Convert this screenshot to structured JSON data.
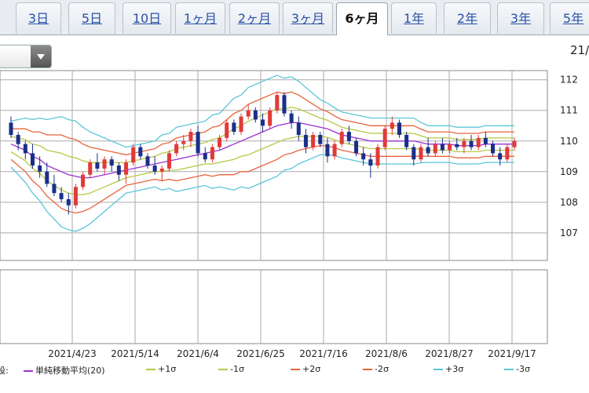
{
  "tabs": [
    {
      "label": "3日",
      "active": false
    },
    {
      "label": "5日",
      "active": false
    },
    {
      "label": "10日",
      "active": false
    },
    {
      "label": "1ヶ月",
      "active": false
    },
    {
      "label": "2ヶ月",
      "active": false
    },
    {
      "label": "3ヶ月",
      "active": false
    },
    {
      "label": "6ヶ月",
      "active": true
    },
    {
      "label": "1年",
      "active": false
    },
    {
      "label": "2年",
      "active": false
    },
    {
      "label": "3年",
      "active": false
    },
    {
      "label": "5年",
      "active": false
    }
  ],
  "date_corner": "21/",
  "legend": {
    "prefix": "設:",
    "items": [
      {
        "label": "単純移動平均(20)",
        "color": "#9b30d0"
      },
      {
        "label": "+1σ",
        "color": "#b7c842"
      },
      {
        "label": "-1σ",
        "color": "#b7c842"
      },
      {
        "label": "+2σ",
        "color": "#e8643c"
      },
      {
        "label": "-2σ",
        "color": "#e8643c"
      },
      {
        "label": "+3σ",
        "color": "#5bc6d8"
      },
      {
        "label": "-3σ",
        "color": "#5bc6d8"
      }
    ]
  },
  "chart_data": {
    "type": "candlestick",
    "x_tick_labels": [
      "2021/4/23",
      "2021/5/14",
      "2021/6/4",
      "2021/6/25",
      "2021/7/16",
      "2021/8/6",
      "2021/8/27",
      "2021/9/17"
    ],
    "y_ticks": [
      107,
      108,
      109,
      110,
      111,
      112
    ],
    "ylim": [
      106.1,
      112.3
    ],
    "up_color": "#e03a3a",
    "down_color": "#1a2f8a",
    "grid": true,
    "candles": [
      {
        "o": 110.6,
        "h": 110.8,
        "l": 110.1,
        "c": 110.2
      },
      {
        "o": 110.2,
        "h": 110.3,
        "l": 109.7,
        "c": 109.9
      },
      {
        "o": 109.9,
        "h": 110.0,
        "l": 109.4,
        "c": 109.6
      },
      {
        "o": 109.6,
        "h": 109.9,
        "l": 109.1,
        "c": 109.2
      },
      {
        "o": 109.2,
        "h": 109.5,
        "l": 108.8,
        "c": 109.0
      },
      {
        "o": 109.0,
        "h": 109.3,
        "l": 108.5,
        "c": 108.6
      },
      {
        "o": 108.6,
        "h": 108.9,
        "l": 108.2,
        "c": 108.3
      },
      {
        "o": 108.3,
        "h": 108.5,
        "l": 108.0,
        "c": 108.1
      },
      {
        "o": 108.1,
        "h": 108.3,
        "l": 107.6,
        "c": 107.9
      },
      {
        "o": 107.9,
        "h": 108.6,
        "l": 107.8,
        "c": 108.5
      },
      {
        "o": 108.5,
        "h": 109.0,
        "l": 108.4,
        "c": 108.9
      },
      {
        "o": 108.9,
        "h": 109.4,
        "l": 108.8,
        "c": 109.3
      },
      {
        "o": 109.3,
        "h": 109.6,
        "l": 109.0,
        "c": 109.1
      },
      {
        "o": 109.1,
        "h": 109.5,
        "l": 108.9,
        "c": 109.4
      },
      {
        "o": 109.4,
        "h": 109.5,
        "l": 109.0,
        "c": 109.2
      },
      {
        "o": 109.2,
        "h": 109.3,
        "l": 108.7,
        "c": 108.9
      },
      {
        "o": 108.9,
        "h": 109.4,
        "l": 108.6,
        "c": 109.3
      },
      {
        "o": 109.3,
        "h": 109.9,
        "l": 109.2,
        "c": 109.8
      },
      {
        "o": 109.8,
        "h": 109.9,
        "l": 109.4,
        "c": 109.5
      },
      {
        "o": 109.5,
        "h": 109.6,
        "l": 109.1,
        "c": 109.2
      },
      {
        "o": 109.2,
        "h": 109.5,
        "l": 108.9,
        "c": 109.0
      },
      {
        "o": 109.0,
        "h": 109.2,
        "l": 108.7,
        "c": 109.1
      },
      {
        "o": 109.1,
        "h": 109.7,
        "l": 109.0,
        "c": 109.6
      },
      {
        "o": 109.6,
        "h": 110.0,
        "l": 109.5,
        "c": 109.9
      },
      {
        "o": 109.9,
        "h": 110.2,
        "l": 109.7,
        "c": 110.0
      },
      {
        "o": 110.0,
        "h": 110.4,
        "l": 109.8,
        "c": 110.3
      },
      {
        "o": 110.3,
        "h": 110.5,
        "l": 109.5,
        "c": 109.6
      },
      {
        "o": 109.6,
        "h": 109.8,
        "l": 109.3,
        "c": 109.4
      },
      {
        "o": 109.4,
        "h": 109.9,
        "l": 109.3,
        "c": 109.8
      },
      {
        "o": 109.8,
        "h": 110.2,
        "l": 109.7,
        "c": 110.1
      },
      {
        "o": 110.1,
        "h": 110.7,
        "l": 110.0,
        "c": 110.6
      },
      {
        "o": 110.6,
        "h": 110.7,
        "l": 110.2,
        "c": 110.3
      },
      {
        "o": 110.3,
        "h": 110.9,
        "l": 110.2,
        "c": 110.8
      },
      {
        "o": 110.8,
        "h": 111.2,
        "l": 110.7,
        "c": 111.0
      },
      {
        "o": 111.0,
        "h": 111.1,
        "l": 110.6,
        "c": 110.7
      },
      {
        "o": 110.7,
        "h": 110.9,
        "l": 110.3,
        "c": 110.5
      },
      {
        "o": 110.5,
        "h": 111.1,
        "l": 110.4,
        "c": 111.0
      },
      {
        "o": 111.0,
        "h": 111.6,
        "l": 110.9,
        "c": 111.5
      },
      {
        "o": 111.5,
        "h": 111.6,
        "l": 110.8,
        "c": 110.9
      },
      {
        "o": 110.9,
        "h": 111.0,
        "l": 110.4,
        "c": 110.6
      },
      {
        "o": 110.6,
        "h": 110.8,
        "l": 110.0,
        "c": 110.2
      },
      {
        "o": 110.2,
        "h": 110.4,
        "l": 109.6,
        "c": 109.8
      },
      {
        "o": 109.8,
        "h": 110.3,
        "l": 109.7,
        "c": 110.2
      },
      {
        "o": 110.2,
        "h": 110.3,
        "l": 109.8,
        "c": 109.9
      },
      {
        "o": 109.9,
        "h": 110.1,
        "l": 109.3,
        "c": 109.5
      },
      {
        "o": 109.5,
        "h": 110.0,
        "l": 109.4,
        "c": 109.9
      },
      {
        "o": 109.9,
        "h": 110.4,
        "l": 109.8,
        "c": 110.3
      },
      {
        "o": 110.3,
        "h": 110.5,
        "l": 109.9,
        "c": 110.0
      },
      {
        "o": 110.0,
        "h": 110.1,
        "l": 109.5,
        "c": 109.6
      },
      {
        "o": 109.6,
        "h": 109.8,
        "l": 109.2,
        "c": 109.4
      },
      {
        "o": 109.4,
        "h": 109.6,
        "l": 108.8,
        "c": 109.2
      },
      {
        "o": 109.2,
        "h": 109.9,
        "l": 109.1,
        "c": 109.8
      },
      {
        "o": 109.8,
        "h": 110.5,
        "l": 109.7,
        "c": 110.4
      },
      {
        "o": 110.4,
        "h": 110.8,
        "l": 110.2,
        "c": 110.6
      },
      {
        "o": 110.6,
        "h": 110.7,
        "l": 110.1,
        "c": 110.2
      },
      {
        "o": 110.2,
        "h": 110.3,
        "l": 109.7,
        "c": 109.8
      },
      {
        "o": 109.8,
        "h": 109.9,
        "l": 109.2,
        "c": 109.4
      },
      {
        "o": 109.4,
        "h": 109.9,
        "l": 109.3,
        "c": 109.8
      },
      {
        "o": 109.8,
        "h": 110.1,
        "l": 109.5,
        "c": 109.6
      },
      {
        "o": 109.6,
        "h": 110.0,
        "l": 109.5,
        "c": 109.9
      },
      {
        "o": 109.9,
        "h": 110.1,
        "l": 109.6,
        "c": 109.7
      },
      {
        "o": 109.7,
        "h": 110.0,
        "l": 109.6,
        "c": 109.9
      },
      {
        "o": 109.9,
        "h": 110.1,
        "l": 109.7,
        "c": 109.8
      },
      {
        "o": 109.8,
        "h": 110.1,
        "l": 109.6,
        "c": 110.0
      },
      {
        "o": 110.0,
        "h": 110.2,
        "l": 109.7,
        "c": 109.8
      },
      {
        "o": 109.8,
        "h": 110.2,
        "l": 109.7,
        "c": 110.1
      },
      {
        "o": 110.1,
        "h": 110.3,
        "l": 109.8,
        "c": 109.9
      },
      {
        "o": 109.9,
        "h": 110.0,
        "l": 109.5,
        "c": 109.6
      },
      {
        "o": 109.6,
        "h": 109.8,
        "l": 109.2,
        "c": 109.4
      },
      {
        "o": 109.4,
        "h": 109.9,
        "l": 109.3,
        "c": 109.8
      },
      {
        "o": 109.8,
        "h": 110.1,
        "l": 109.7,
        "c": 110.0
      }
    ],
    "sma20": [
      109.9,
      109.8,
      109.7,
      109.5,
      109.4,
      109.2,
      109.1,
      109.0,
      108.9,
      108.85,
      108.8,
      108.8,
      108.85,
      108.9,
      108.95,
      109.0,
      109.05,
      109.1,
      109.15,
      109.2,
      109.25,
      109.3,
      109.35,
      109.4,
      109.45,
      109.5,
      109.55,
      109.6,
      109.65,
      109.7,
      109.8,
      109.9,
      110.0,
      110.1,
      110.2,
      110.3,
      110.4,
      110.5,
      110.55,
      110.6,
      110.6,
      110.55,
      110.5,
      110.45,
      110.4,
      110.3,
      110.2,
      110.15,
      110.1,
      110.05,
      110.0,
      110.0,
      110.0,
      110.0,
      110.0,
      110.0,
      110.0,
      109.95,
      109.9,
      109.9,
      109.9,
      109.9,
      109.85,
      109.85,
      109.85,
      109.85,
      109.9,
      109.9,
      109.9,
      109.9,
      109.9
    ],
    "sigma": [
      0.25,
      0.3,
      0.35,
      0.4,
      0.45,
      0.5,
      0.55,
      0.6,
      0.6,
      0.6,
      0.55,
      0.5,
      0.45,
      0.4,
      0.35,
      0.3,
      0.25,
      0.25,
      0.25,
      0.25,
      0.25,
      0.3,
      0.3,
      0.35,
      0.35,
      0.35,
      0.35,
      0.35,
      0.4,
      0.4,
      0.45,
      0.5,
      0.5,
      0.55,
      0.55,
      0.55,
      0.55,
      0.55,
      0.5,
      0.5,
      0.45,
      0.4,
      0.35,
      0.3,
      0.28,
      0.26,
      0.25,
      0.25,
      0.25,
      0.25,
      0.25,
      0.25,
      0.25,
      0.25,
      0.25,
      0.25,
      0.25,
      0.22,
      0.2,
      0.2,
      0.2,
      0.2,
      0.2,
      0.2,
      0.2,
      0.2,
      0.2,
      0.2,
      0.2,
      0.2,
      0.2
    ]
  }
}
